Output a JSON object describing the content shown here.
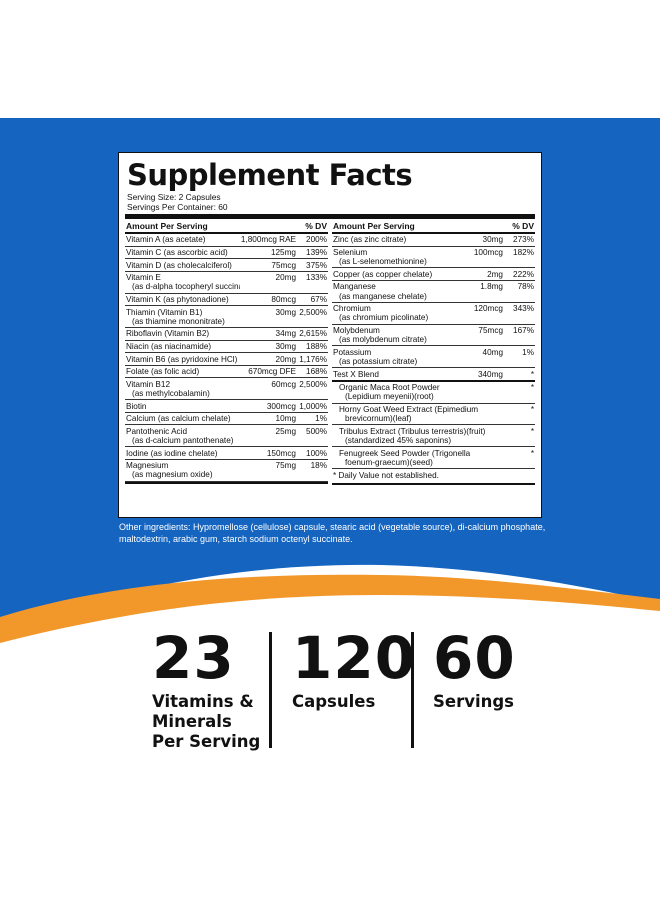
{
  "colors": {
    "blue": "#1565c0",
    "orange": "#f2972a",
    "text": "#111111",
    "white": "#ffffff"
  },
  "facts": {
    "title": "Supplement Facts",
    "serving_size": "Serving Size: 2 Capsules",
    "servings_per_container": "Servings Per Container: 60",
    "header_amount": "Amount Per Serving",
    "header_dv": "% DV",
    "left_rows": [
      {
        "name": "Vitamin A (as acetate)",
        "sub": "",
        "amount": "1,800mcg RAE",
        "dv": "200%"
      },
      {
        "name": "Vitamin C (as ascorbic acid)",
        "sub": "",
        "amount": "125mg",
        "dv": "139%"
      },
      {
        "name": "Vitamin D (as cholecalciferol)",
        "sub": "",
        "amount": "75mcg",
        "dv": "375%"
      },
      {
        "name": "Vitamin E",
        "sub": "(as d-alpha tocopheryl succinate)",
        "amount": "20mg",
        "dv": "133%"
      },
      {
        "name": "Vitamin K (as phytonadione)",
        "sub": "",
        "amount": "80mcg",
        "dv": "67%"
      },
      {
        "name": "Thiamin (Vitamin B1)",
        "sub": "(as thiamine mononitrate)",
        "amount": "30mg",
        "dv": "2,500%"
      },
      {
        "name": "Riboflavin (Vitamin B2)",
        "sub": "",
        "amount": "34mg",
        "dv": "2,615%"
      },
      {
        "name": "Niacin (as niacinamide)",
        "sub": "",
        "amount": "30mg",
        "dv": "188%"
      },
      {
        "name": "Vitamin B6 (as pyridoxine HCl)",
        "sub": "",
        "amount": "20mg",
        "dv": "1,176%"
      },
      {
        "name": "Folate (as folic acid)",
        "sub": "",
        "amount": "670mcg DFE",
        "dv": "168%"
      },
      {
        "name": "Vitamin B12",
        "sub": "(as methylcobalamin)",
        "amount": "60mcg",
        "dv": "2,500%"
      },
      {
        "name": "Biotin",
        "sub": "",
        "amount": "300mcg",
        "dv": "1,000%"
      },
      {
        "name": "Calcium (as calcium chelate)",
        "sub": "",
        "amount": "10mg",
        "dv": "1%"
      },
      {
        "name": "Pantothenic Acid",
        "sub": "(as d-calcium pantothenate)",
        "amount": "25mg",
        "dv": "500%"
      },
      {
        "name": "Iodine (as iodine chelate)",
        "sub": "",
        "amount": "150mcg",
        "dv": "100%"
      },
      {
        "name": "Magnesium",
        "sub": "(as magnesium oxide)",
        "amount": "75mg",
        "dv": "18%"
      }
    ],
    "right_rows": [
      {
        "name": "Zinc (as zinc citrate)",
        "sub": "",
        "amount": "30mg",
        "dv": "273%"
      },
      {
        "name": "Selenium",
        "sub": "(as L-selenomethionine)",
        "amount": "100mcg",
        "dv": "182%"
      },
      {
        "name": "Copper (as copper chelate)",
        "sub": "",
        "amount": "2mg",
        "dv": "222%"
      },
      {
        "name": "Manganese",
        "sub": "(as manganese chelate)",
        "amount": "1.8mg",
        "dv": "78%"
      },
      {
        "name": "Chromium",
        "sub": "(as chromium picolinate)",
        "amount": "120mcg",
        "dv": "343%"
      },
      {
        "name": "Molybdenum",
        "sub": "(as molybdenum citrate)",
        "amount": "75mcg",
        "dv": "167%"
      },
      {
        "name": "Potassium",
        "sub": "(as potassium citrate)",
        "amount": "40mg",
        "dv": "1%"
      }
    ],
    "blend": {
      "name": "Test X Blend",
      "amount": "340mg",
      "dv": "*"
    },
    "blend_items": [
      {
        "line1": "Organic Maca Root Powder",
        "line2": "(Lepidium meyenii)(root)",
        "dv": "*"
      },
      {
        "line1": "Horny Goat Weed Extract (Epimedium",
        "line2": "brevicornum)(leaf)",
        "dv": "*"
      },
      {
        "line1": "Tribulus Extract (Tribulus terrestris)(fruit)",
        "line2": "(standardized 45% saponins)",
        "dv": "*"
      },
      {
        "line1": "Fenugreek Seed Powder (Trigonella",
        "line2": "foenum-graecum)(seed)",
        "dv": "*"
      }
    ],
    "footnote": "* Daily Value not established."
  },
  "other_ingredients": "Other ingredients: Hypromellose (cellulose) capsule, stearic acid (vegetable source), di-calcium phosphate, maltodextrin, arabic gum, starch sodium octenyl succinate.",
  "stats": [
    {
      "number": "23",
      "label": "Vitamins &\nMinerals\nPer Serving"
    },
    {
      "number": "120",
      "label": "Capsules"
    },
    {
      "number": "60",
      "label": "Servings"
    }
  ]
}
